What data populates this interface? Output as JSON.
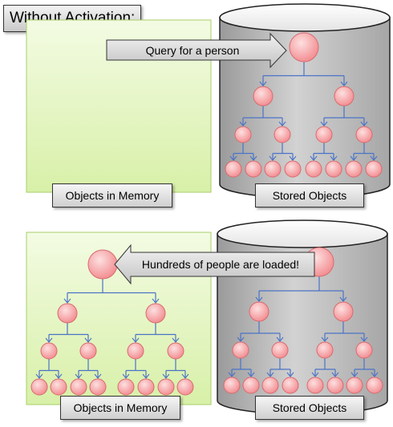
{
  "title": "Without Activation:",
  "panels": {
    "top": {
      "memory_label": "Objects in Memory",
      "stored_label": "Stored Objects",
      "arrow_label": "Query for a person"
    },
    "bottom": {
      "memory_label": "Objects in Memory",
      "stored_label": "Stored Objects",
      "arrow_label": "Hundreds of people are loaded!"
    }
  },
  "colors": {
    "memory_fill": "#e6f7c4",
    "memory_border": "#a9cf6a",
    "cylinder_fill": "#c4c4c4",
    "node_fill": "#f6a0a2",
    "node_border": "#d86b6f",
    "edge": "#4a73c6",
    "arrow_fill": "#d6d6d6"
  }
}
